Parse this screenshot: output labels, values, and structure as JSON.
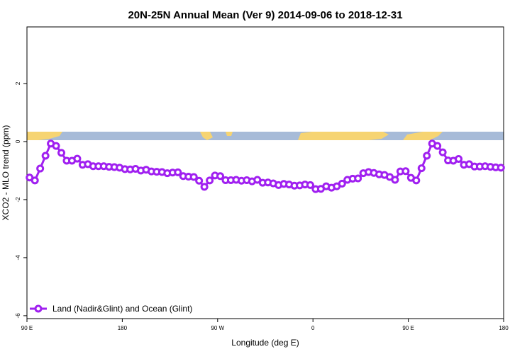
{
  "chart_data": {
    "type": "line",
    "title": "20N-25N Annual Mean (Ver 9)   2014-09-06 to 2018-12-31",
    "x_label": "Longitude (deg E)",
    "y_label": "XCO2 - MLO trend (ppm)",
    "xlim": [
      90,
      540
    ],
    "ylim": [
      -6.1,
      3.95
    ],
    "xticks": [
      {
        "value": 90,
        "label": "90 E"
      },
      {
        "value": 180,
        "label": "180"
      },
      {
        "value": 270,
        "label": "90 W"
      },
      {
        "value": 360,
        "label": "0"
      },
      {
        "value": 450,
        "label": "90 E"
      },
      {
        "value": 540,
        "label": "180"
      }
    ],
    "yticks": [
      -6,
      -4,
      -2,
      0,
      2
    ],
    "legend": "bottom-left",
    "x": [
      92.5,
      97.5,
      102.5,
      107.5,
      112.5,
      117.5,
      122.5,
      127.5,
      132.5,
      137.5,
      142.5,
      147.5,
      152.5,
      157.5,
      162.5,
      167.5,
      172.5,
      177.5,
      182.5,
      187.5,
      192.5,
      197.5,
      202.5,
      207.5,
      212.5,
      217.5,
      222.5,
      227.5,
      232.5,
      237.5,
      242.5,
      247.5,
      252.5,
      257.5,
      262.5,
      267.5,
      272.5,
      277.5,
      282.5,
      287.5,
      292.5,
      297.5,
      302.5,
      307.5,
      312.5,
      317.5,
      322.5,
      327.5,
      332.5,
      337.5,
      342.5,
      347.5,
      352.5,
      357.5,
      362.5,
      367.5,
      372.5,
      377.5,
      382.5,
      387.5,
      392.5,
      397.5,
      402.5,
      407.5,
      412.5,
      417.5,
      422.5,
      427.5,
      432.5,
      437.5,
      442.5,
      447.5,
      452.5,
      457.5,
      462.5,
      467.5,
      472.5,
      477.5,
      482.5,
      487.5,
      492.5,
      497.5,
      502.5,
      507.5,
      512.5,
      517.5,
      522.5,
      527.5,
      532.5,
      537.5
    ],
    "series": [
      {
        "name": "Land (Nadir&Glint) and Ocean (Glint)",
        "color": "#a020f0",
        "values": [
          -1.24,
          -1.34,
          -0.93,
          -0.49,
          -0.07,
          -0.15,
          -0.39,
          -0.66,
          -0.66,
          -0.59,
          -0.8,
          -0.78,
          -0.85,
          -0.85,
          -0.85,
          -0.87,
          -0.88,
          -0.9,
          -0.95,
          -0.96,
          -0.94,
          -1.0,
          -0.97,
          -1.03,
          -1.04,
          -1.05,
          -1.09,
          -1.07,
          -1.06,
          -1.19,
          -1.21,
          -1.22,
          -1.35,
          -1.56,
          -1.34,
          -1.17,
          -1.19,
          -1.33,
          -1.33,
          -1.32,
          -1.35,
          -1.33,
          -1.37,
          -1.32,
          -1.42,
          -1.41,
          -1.44,
          -1.5,
          -1.46,
          -1.48,
          -1.52,
          -1.51,
          -1.48,
          -1.5,
          -1.64,
          -1.63,
          -1.54,
          -1.59,
          -1.54,
          -1.45,
          -1.32,
          -1.28,
          -1.27,
          -1.09,
          -1.05,
          -1.08,
          -1.13,
          -1.15,
          -1.22,
          -1.32,
          -1.03,
          -1.02,
          -1.25,
          -1.34,
          -0.92,
          -0.49,
          -0.07,
          -0.15,
          -0.37,
          -0.65,
          -0.66,
          -0.6,
          -0.8,
          -0.78,
          -0.86,
          -0.86,
          -0.85,
          -0.87,
          -0.89,
          -0.9
        ]
      }
    ]
  }
}
